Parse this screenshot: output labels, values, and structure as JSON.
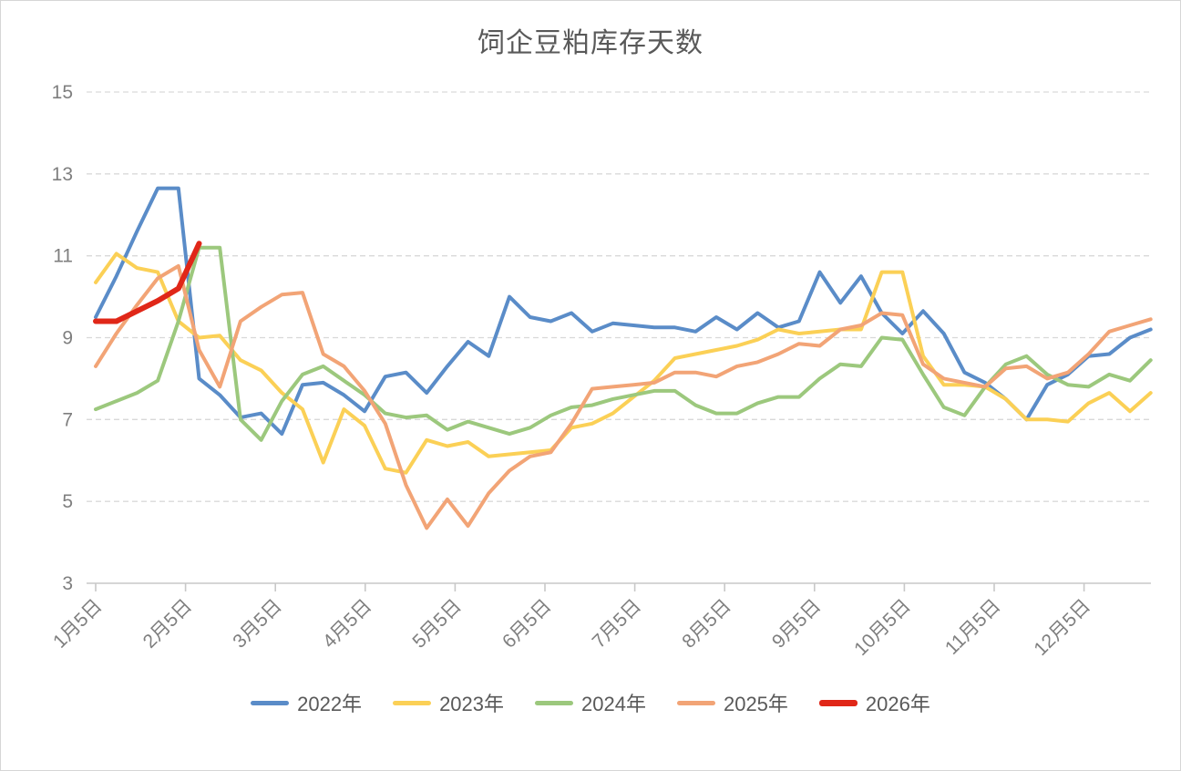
{
  "window": {
    "background": "#ffffff",
    "border_color": "#d6d6d6"
  },
  "chart_data": {
    "type": "line",
    "title": "饲企豆粕库存天数",
    "xlabel": "",
    "ylabel": "",
    "y_ticks": [
      15,
      13,
      11,
      9,
      7,
      5,
      3
    ],
    "y_range": [
      3,
      15
    ],
    "grid": "horizontal-dashed",
    "legend_position": "bottom",
    "x_tick_labels": [
      "1月5日",
      "2月5日",
      "3月5日",
      "4月5日",
      "5月5日",
      "6月5日",
      "7月5日",
      "8月5日",
      "9月5日",
      "10月5日",
      "11月5日",
      "12月5日"
    ],
    "x_unit": "weekly points from 1月5日 to 12月末",
    "colors": {
      "title_text": "#595959",
      "axis_labels": "#7f7f7f",
      "gridline": "#d9d9d9",
      "axis_line": "#c8c8c8"
    },
    "series": [
      {
        "name": "2022年",
        "color": "#5a8cc8",
        "width": 4,
        "values": [
          9.5,
          10.5,
          11.6,
          12.65,
          12.65,
          8.0,
          7.6,
          7.05,
          7.15,
          6.65,
          7.85,
          7.9,
          7.6,
          7.2,
          8.05,
          8.15,
          7.65,
          8.3,
          8.9,
          8.55,
          10.0,
          9.5,
          9.4,
          9.6,
          9.15,
          9.35,
          9.3,
          9.25,
          9.25,
          9.15,
          9.5,
          9.2,
          9.6,
          9.25,
          9.4,
          10.6,
          9.85,
          10.5,
          9.6,
          9.1,
          9.65,
          9.1,
          8.15,
          7.9,
          7.5,
          7.0,
          7.85,
          8.1,
          8.55,
          8.6,
          9.0,
          9.2
        ]
      },
      {
        "name": "2023年",
        "color": "#fbd056",
        "width": 4,
        "values": [
          10.35,
          11.05,
          10.7,
          10.6,
          9.4,
          9.0,
          9.05,
          8.45,
          8.2,
          7.65,
          7.25,
          5.95,
          7.25,
          6.85,
          5.8,
          5.7,
          6.5,
          6.35,
          6.45,
          6.1,
          6.15,
          6.2,
          6.25,
          6.8,
          6.9,
          7.15,
          7.55,
          7.95,
          8.5,
          8.6,
          8.7,
          8.8,
          8.95,
          9.2,
          9.1,
          9.15,
          9.2,
          9.2,
          10.6,
          10.6,
          8.55,
          7.85,
          7.85,
          7.8,
          7.5,
          7.0,
          7.0,
          6.95,
          7.4,
          7.65,
          7.2,
          7.65
        ]
      },
      {
        "name": "2024年",
        "color": "#9cc87d",
        "width": 4,
        "values": [
          7.25,
          7.45,
          7.65,
          7.95,
          9.4,
          11.2,
          11.2,
          7.0,
          6.5,
          7.45,
          8.1,
          8.3,
          7.95,
          7.6,
          7.15,
          7.05,
          7.1,
          6.75,
          6.95,
          6.8,
          6.65,
          6.8,
          7.1,
          7.3,
          7.35,
          7.5,
          7.6,
          7.7,
          7.7,
          7.35,
          7.15,
          7.15,
          7.4,
          7.55,
          7.55,
          8.0,
          8.35,
          8.3,
          9.0,
          8.95,
          8.1,
          7.3,
          7.1,
          7.8,
          8.35,
          8.55,
          8.1,
          7.85,
          7.8,
          8.1,
          7.95,
          8.45
        ]
      },
      {
        "name": "2025年",
        "color": "#f2a476",
        "width": 4,
        "values": [
          8.3,
          9.1,
          9.8,
          10.45,
          10.75,
          8.7,
          7.8,
          9.4,
          9.75,
          10.05,
          10.1,
          8.6,
          8.3,
          7.7,
          6.9,
          5.4,
          4.35,
          5.05,
          4.4,
          5.2,
          5.75,
          6.1,
          6.2,
          6.9,
          7.75,
          7.8,
          7.85,
          7.9,
          8.15,
          8.15,
          8.05,
          8.3,
          8.4,
          8.6,
          8.85,
          8.8,
          9.2,
          9.3,
          9.6,
          9.55,
          8.35,
          8.0,
          7.9,
          7.8,
          8.25,
          8.3,
          8.0,
          8.15,
          8.6,
          9.15,
          9.3,
          9.45
        ]
      },
      {
        "name": "2026年",
        "color": "#e02718",
        "width": 6,
        "values": [
          9.4,
          9.4,
          9.65,
          9.9,
          10.2,
          11.3
        ]
      }
    ]
  }
}
